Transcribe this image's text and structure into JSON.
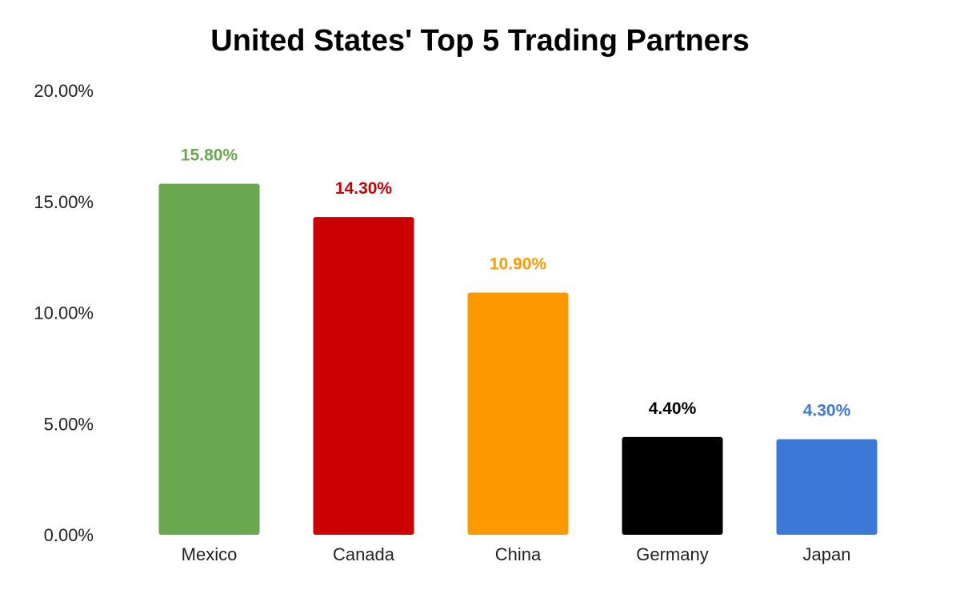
{
  "chart_data": {
    "type": "bar",
    "title": "United States' Top 5 Trading Partners",
    "xlabel": "",
    "ylabel": "",
    "ylim": [
      0,
      20
    ],
    "yticks": [
      0,
      5,
      10,
      15,
      20
    ],
    "ytick_labels": [
      "0.00%",
      "5.00%",
      "10.00%",
      "15.00%",
      "20.00%"
    ],
    "grid": false,
    "legend": "none",
    "categories": [
      "Mexico",
      "Canada",
      "China",
      "Germany",
      "Japan"
    ],
    "values": [
      15.8,
      14.3,
      10.9,
      4.4,
      4.3
    ],
    "data_labels": [
      "15.80%",
      "14.30%",
      "10.90%",
      "4.40%",
      "4.30%"
    ],
    "colors": [
      "#6aa84f",
      "#cc0000",
      "#ff9900",
      "#000000",
      "#3c78d8"
    ]
  }
}
